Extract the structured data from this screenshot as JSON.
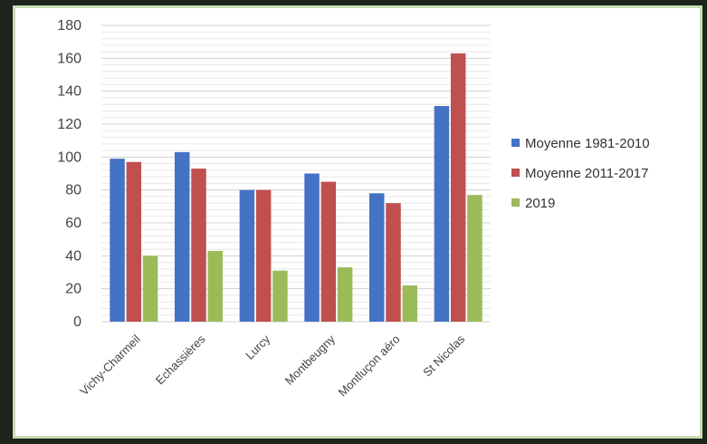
{
  "chart_data": {
    "type": "bar",
    "title": "",
    "xlabel": "",
    "ylabel": "",
    "ylim": [
      0,
      180
    ],
    "yticks": [
      0,
      20,
      40,
      60,
      80,
      100,
      120,
      140,
      160,
      180
    ],
    "grid": true,
    "legend_position": "right",
    "categories": [
      "Vichy-Charmeil",
      "Echassières",
      "Lurcy",
      "Montbeugny",
      "Montluçon aéro",
      "St Nicolas"
    ],
    "series": [
      {
        "name": "Moyenne 1981-2010",
        "color": "#4472c4",
        "values": [
          99,
          103,
          80,
          90,
          78,
          131
        ]
      },
      {
        "name": "Moyenne 2011-2017",
        "color": "#c0504d",
        "values": [
          97,
          93,
          80,
          85,
          72,
          163
        ]
      },
      {
        "name": "2019",
        "color": "#9bbb59",
        "values": [
          40,
          43,
          31,
          33,
          22,
          77
        ]
      }
    ]
  }
}
